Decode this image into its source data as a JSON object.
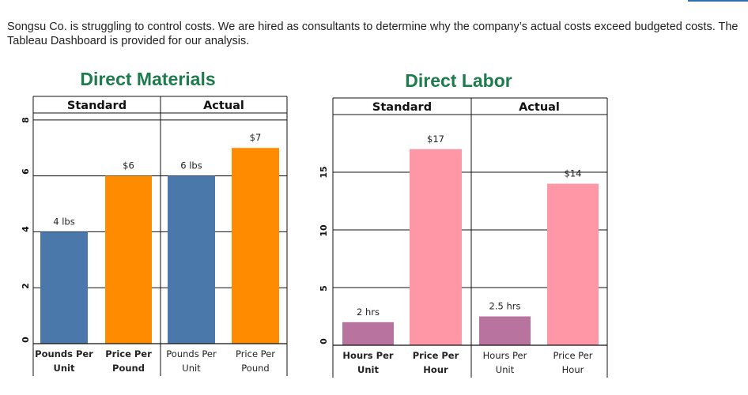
{
  "intro_text": "Songsu Co. is struggling to control costs. We are hired as consultants to determine why the company’s actual costs exceed budgeted costs. The Tableau Dashboard is provided for our analysis.",
  "colors": {
    "title_green": "#1e7b4c",
    "blue": "#4a78ab",
    "orange": "#ff8c00",
    "purple": "#b9739f",
    "pink": "#ff97a7"
  },
  "chart_data": [
    {
      "type": "bar",
      "title": "Direct Materials",
      "groups": [
        "Standard",
        "Actual"
      ],
      "categories": [
        {
          "group": "Standard",
          "label": [
            "Pounds Per",
            "Unit"
          ],
          "bold": true
        },
        {
          "group": "Standard",
          "label": [
            "Price Per",
            "Pound"
          ],
          "bold": true
        },
        {
          "group": "Actual",
          "label": [
            "Pounds Per",
            "Unit"
          ],
          "bold": false
        },
        {
          "group": "Actual",
          "label": [
            "Price Per",
            "Pound"
          ],
          "bold": false
        }
      ],
      "values": [
        4,
        6,
        6,
        7
      ],
      "data_labels": [
        "4 lbs",
        "$6",
        "6 lbs",
        "$7"
      ],
      "colors": [
        "blue",
        "orange",
        "blue",
        "orange"
      ],
      "y_ticks": [
        "0",
        "2",
        "4",
        "6",
        "8"
      ],
      "ylim": [
        0,
        8.25
      ],
      "grid": true
    },
    {
      "type": "bar",
      "title": "Direct Labor",
      "groups": [
        "Standard",
        "Actual"
      ],
      "categories": [
        {
          "group": "Standard",
          "label": [
            "Hours Per",
            "Unit"
          ],
          "bold": true
        },
        {
          "group": "Standard",
          "label": [
            "Price Per",
            "Hour"
          ],
          "bold": true
        },
        {
          "group": "Actual",
          "label": [
            "Hours Per",
            "Unit"
          ],
          "bold": false
        },
        {
          "group": "Actual",
          "label": [
            "Price Per",
            "Hour"
          ],
          "bold": false
        }
      ],
      "values": [
        2,
        17,
        2.5,
        14
      ],
      "data_labels": [
        "2 hrs",
        "$17",
        "2.5 hrs",
        "$14"
      ],
      "colors": [
        "purple",
        "pink",
        "purple",
        "pink"
      ],
      "y_ticks": [
        "0",
        "5",
        "10",
        "15"
      ],
      "ylim": [
        0,
        20
      ],
      "grid": true
    }
  ]
}
